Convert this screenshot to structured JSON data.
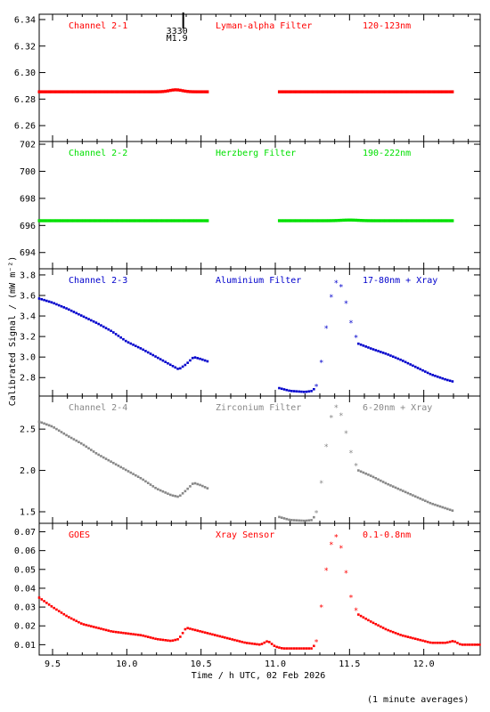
{
  "xlabel": "Time / h UTC, 02 Feb 2026",
  "ylabel": "Calibrated Signal / (mW m⁻²)",
  "footnote": "(1 minute averages)",
  "flare": {
    "time_label": "3330",
    "class_label": "M1.9",
    "time": 10.38
  },
  "chart_data": [
    {
      "type": "scatter",
      "channel": "Channel 2-1",
      "filter": "Lyman-alpha Filter",
      "band": "120-123nm",
      "color": "#ff0000",
      "xlim": [
        9.41,
        12.38
      ],
      "ylim": [
        6.248,
        6.344
      ],
      "yticks": [
        6.26,
        6.28,
        6.3,
        6.32,
        6.34
      ],
      "yticklabels": [
        "6.26",
        "6.28",
        "6.30",
        "6.32",
        "6.34"
      ],
      "profile": "flat",
      "gap": [
        10.56,
        11.02
      ],
      "x_end": 12.2,
      "level": 6.2855,
      "bump": {
        "center": 10.33,
        "amp": 0.0015,
        "width": 0.06
      }
    },
    {
      "type": "scatter",
      "channel": "Channel 2-2",
      "filter": "Herzberg Filter",
      "band": "190-222nm",
      "color": "#00e000",
      "xlim": [
        9.41,
        12.38
      ],
      "ylim": [
        692.8,
        702.2
      ],
      "yticks": [
        694,
        696,
        698,
        700,
        702
      ],
      "yticklabels": [
        "694",
        "696",
        "698",
        "700",
        "702"
      ],
      "profile": "flat",
      "gap": [
        10.56,
        11.02
      ],
      "x_end": 12.2,
      "level": 696.35,
      "bump": {
        "center": 11.5,
        "amp": 0.05,
        "width": 0.08
      }
    },
    {
      "type": "scatter",
      "channel": "Channel 2-3",
      "filter": "Aluminium Filter",
      "band": "17-80nm + Xray",
      "color": "#0000cc",
      "xlim": [
        9.41,
        12.38
      ],
      "ylim": [
        2.62,
        3.86
      ],
      "yticks": [
        2.8,
        3.0,
        3.2,
        3.4,
        3.6,
        3.8
      ],
      "yticklabels": [
        "2.8",
        "3.0",
        "3.2",
        "3.4",
        "3.6",
        "3.8"
      ],
      "profile": "flare",
      "gap": [
        10.56,
        11.02
      ],
      "x_end": 12.2,
      "points": [
        [
          9.41,
          3.57
        ],
        [
          9.5,
          3.53
        ],
        [
          9.6,
          3.47
        ],
        [
          9.7,
          3.4
        ],
        [
          9.8,
          3.33
        ],
        [
          9.9,
          3.25
        ],
        [
          10.0,
          3.15
        ],
        [
          10.1,
          3.08
        ],
        [
          10.2,
          3.0
        ],
        [
          10.3,
          2.92
        ],
        [
          10.35,
          2.88
        ],
        [
          10.4,
          2.93
        ],
        [
          10.45,
          3.0
        ],
        [
          10.5,
          2.98
        ],
        [
          10.56,
          2.95
        ],
        [
          11.02,
          2.7
        ],
        [
          11.1,
          2.67
        ],
        [
          11.2,
          2.66
        ],
        [
          11.25,
          2.67
        ],
        [
          11.28,
          2.72
        ],
        [
          11.31,
          2.95
        ],
        [
          11.34,
          3.25
        ],
        [
          11.37,
          3.55
        ],
        [
          11.4,
          3.72
        ],
        [
          11.43,
          3.74
        ],
        [
          11.46,
          3.62
        ],
        [
          11.49,
          3.45
        ],
        [
          11.52,
          3.28
        ],
        [
          11.56,
          3.13
        ],
        [
          11.65,
          3.08
        ],
        [
          11.75,
          3.03
        ],
        [
          11.85,
          2.97
        ],
        [
          11.95,
          2.9
        ],
        [
          12.05,
          2.83
        ],
        [
          12.15,
          2.78
        ],
        [
          12.2,
          2.76
        ]
      ]
    },
    {
      "type": "scatter",
      "channel": "Channel 2-4",
      "filter": "Zirconium Filter",
      "band": "6-20nm + Xray",
      "color": "#888888",
      "xlim": [
        9.41,
        12.38
      ],
      "ylim": [
        1.36,
        2.9
      ],
      "yticks": [
        1.5,
        2.0,
        2.5
      ],
      "yticklabels": [
        "1.5",
        "2.0",
        "2.5"
      ],
      "profile": "flare",
      "gap": [
        10.56,
        11.02
      ],
      "x_end": 12.2,
      "points": [
        [
          9.41,
          2.59
        ],
        [
          9.5,
          2.53
        ],
        [
          9.6,
          2.42
        ],
        [
          9.7,
          2.32
        ],
        [
          9.8,
          2.2
        ],
        [
          9.9,
          2.1
        ],
        [
          10.0,
          2.0
        ],
        [
          10.1,
          1.9
        ],
        [
          10.2,
          1.78
        ],
        [
          10.3,
          1.7
        ],
        [
          10.35,
          1.68
        ],
        [
          10.4,
          1.76
        ],
        [
          10.45,
          1.85
        ],
        [
          10.5,
          1.82
        ],
        [
          10.56,
          1.77
        ],
        [
          11.02,
          1.44
        ],
        [
          11.1,
          1.4
        ],
        [
          11.2,
          1.39
        ],
        [
          11.25,
          1.4
        ],
        [
          11.28,
          1.5
        ],
        [
          11.31,
          1.85
        ],
        [
          11.34,
          2.25
        ],
        [
          11.37,
          2.6
        ],
        [
          11.4,
          2.78
        ],
        [
          11.43,
          2.74
        ],
        [
          11.46,
          2.58
        ],
        [
          11.49,
          2.35
        ],
        [
          11.52,
          2.15
        ],
        [
          11.56,
          2.0
        ],
        [
          11.65,
          1.93
        ],
        [
          11.75,
          1.84
        ],
        [
          11.85,
          1.76
        ],
        [
          11.95,
          1.68
        ],
        [
          12.05,
          1.6
        ],
        [
          12.15,
          1.54
        ],
        [
          12.2,
          1.51
        ]
      ]
    },
    {
      "type": "scatter",
      "channel": "GOES",
      "filter": "Xray Sensor",
      "band": "0.1-0.8nm",
      "color": "#ff0000",
      "xlim": [
        9.41,
        12.38
      ],
      "ylim": [
        0.0045,
        0.0745
      ],
      "yticks": [
        0.01,
        0.02,
        0.03,
        0.04,
        0.05,
        0.06,
        0.07
      ],
      "yticklabels": [
        "0.01",
        "0.02",
        "0.03",
        "0.04",
        "0.05",
        "0.06",
        "0.07"
      ],
      "profile": "flare",
      "gap": null,
      "x_end": 12.38,
      "points": [
        [
          9.41,
          0.035
        ],
        [
          9.5,
          0.03
        ],
        [
          9.6,
          0.025
        ],
        [
          9.7,
          0.021
        ],
        [
          9.8,
          0.019
        ],
        [
          9.9,
          0.017
        ],
        [
          10.0,
          0.016
        ],
        [
          10.1,
          0.015
        ],
        [
          10.2,
          0.013
        ],
        [
          10.3,
          0.012
        ],
        [
          10.35,
          0.013
        ],
        [
          10.4,
          0.019
        ],
        [
          10.5,
          0.017
        ],
        [
          10.6,
          0.015
        ],
        [
          10.7,
          0.013
        ],
        [
          10.8,
          0.011
        ],
        [
          10.9,
          0.01
        ],
        [
          10.95,
          0.012
        ],
        [
          11.0,
          0.009
        ],
        [
          11.05,
          0.008
        ],
        [
          11.2,
          0.008
        ],
        [
          11.25,
          0.008
        ],
        [
          11.28,
          0.012
        ],
        [
          11.31,
          0.03
        ],
        [
          11.34,
          0.048
        ],
        [
          11.37,
          0.062
        ],
        [
          11.4,
          0.068
        ],
        [
          11.43,
          0.066
        ],
        [
          11.46,
          0.056
        ],
        [
          11.49,
          0.042
        ],
        [
          11.52,
          0.032
        ],
        [
          11.56,
          0.026
        ],
        [
          11.65,
          0.022
        ],
        [
          11.75,
          0.018
        ],
        [
          11.85,
          0.015
        ],
        [
          11.95,
          0.013
        ],
        [
          12.05,
          0.011
        ],
        [
          12.15,
          0.011
        ],
        [
          12.2,
          0.012
        ],
        [
          12.25,
          0.01
        ],
        [
          12.38,
          0.01
        ]
      ]
    }
  ],
  "xticks": [
    9.5,
    10.0,
    10.5,
    11.0,
    11.5,
    12.0
  ],
  "xticklabels": [
    "9.5",
    "10.0",
    "10.5",
    "11.0",
    "11.5",
    "12.0"
  ]
}
